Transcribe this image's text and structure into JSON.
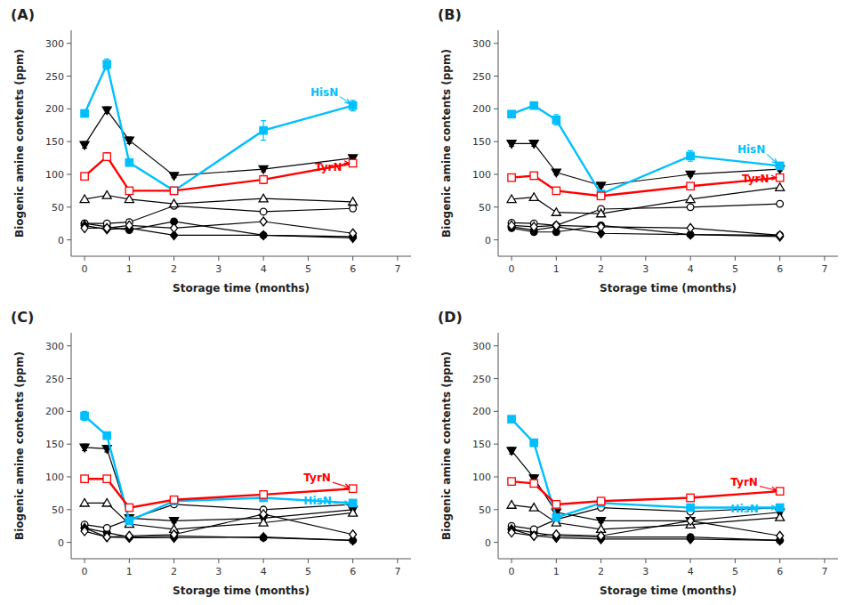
{
  "chart_data": [
    {
      "type": "line",
      "title": "(A)",
      "xlabel": "Storage time (months)",
      "ylabel": "Biogenic amine contents (ppm)",
      "x": [
        0,
        0.5,
        1,
        2,
        4,
        6
      ],
      "xlim": [
        -0.3,
        7.3
      ],
      "xticks": [
        0,
        1,
        2,
        3,
        4,
        5,
        6,
        7
      ],
      "ylim": [
        -25,
        320
      ],
      "yticks": [
        0,
        50,
        100,
        150,
        200,
        250,
        300
      ],
      "grid": false,
      "series": [
        {
          "color": "black",
          "marker": "circle",
          "values": [
            25,
            20,
            15,
            28,
            7,
            5
          ],
          "errors": [
            2,
            2,
            2,
            2,
            1,
            1
          ]
        },
        {
          "color": "black",
          "marker": "open-circle",
          "values": [
            25,
            25,
            27,
            52,
            43,
            48
          ]
        },
        {
          "color": "black",
          "marker": "triangle-down",
          "values": [
            145,
            198,
            152,
            98,
            108,
            125
          ],
          "errors": [
            5,
            5,
            5,
            3,
            4,
            4
          ]
        },
        {
          "color": "black",
          "marker": "open-triangle-up",
          "values": [
            62,
            68,
            62,
            55,
            63,
            58
          ]
        },
        {
          "color": "#00BFFF",
          "marker": "square",
          "values": [
            193,
            268,
            118,
            75,
            167,
            205
          ],
          "errors": [
            5,
            8,
            5,
            5,
            15,
            8
          ]
        },
        {
          "color": "red",
          "marker": "open-square",
          "values": [
            97,
            127,
            75,
            75,
            92,
            117
          ],
          "errors": [
            4,
            6,
            4,
            4,
            6,
            5
          ]
        },
        {
          "color": "black",
          "marker": "diamond",
          "values": [
            22,
            16,
            18,
            7,
            7,
            3
          ]
        },
        {
          "color": "black",
          "marker": "open-diamond",
          "values": [
            18,
            18,
            22,
            18,
            28,
            10
          ]
        }
      ],
      "annotations": [
        {
          "text": "HisN",
          "x": 6,
          "y": 205,
          "text_x": 5.05,
          "text_y": 220,
          "color": "#00BFFF"
        },
        {
          "text": "TyrN",
          "x": 6,
          "y": 117,
          "text_x": 5.15,
          "text_y": 105,
          "color": "red"
        }
      ]
    },
    {
      "type": "line",
      "title": "(B)",
      "xlabel": "Storage time (months)",
      "ylabel": "Biogenic amine contents (ppm)",
      "x": [
        0,
        0.5,
        1,
        2,
        4,
        6
      ],
      "xlim": [
        -0.3,
        7.3
      ],
      "xticks": [
        0,
        1,
        2,
        3,
        4,
        5,
        6,
        7
      ],
      "ylim": [
        -25,
        320
      ],
      "yticks": [
        0,
        50,
        100,
        150,
        200,
        250,
        300
      ],
      "grid": false,
      "series": [
        {
          "color": "black",
          "marker": "circle",
          "values": [
            18,
            12,
            12,
            22,
            8,
            7
          ],
          "errors": [
            2,
            1,
            1,
            2,
            1,
            1
          ]
        },
        {
          "color": "black",
          "marker": "open-circle",
          "values": [
            26,
            25,
            22,
            47,
            50,
            55
          ]
        },
        {
          "color": "black",
          "marker": "triangle-down",
          "values": [
            147,
            147,
            103,
            83,
            100,
            108
          ],
          "errors": [
            4,
            4,
            4,
            3,
            3,
            3
          ]
        },
        {
          "color": "black",
          "marker": "open-triangle-up",
          "values": [
            62,
            65,
            42,
            40,
            62,
            80
          ]
        },
        {
          "color": "#00BFFF",
          "marker": "square",
          "values": [
            192,
            205,
            183,
            70,
            128,
            113
          ],
          "errors": [
            5,
            5,
            8,
            5,
            8,
            5
          ]
        },
        {
          "color": "red",
          "marker": "open-square",
          "values": [
            95,
            98,
            75,
            67,
            82,
            95
          ],
          "errors": [
            4,
            4,
            5,
            4,
            4,
            4
          ]
        },
        {
          "color": "black",
          "marker": "diamond",
          "values": [
            20,
            15,
            20,
            10,
            8,
            5
          ]
        },
        {
          "color": "black",
          "marker": "open-diamond",
          "values": [
            22,
            20,
            22,
            20,
            18,
            7
          ]
        }
      ],
      "annotations": [
        {
          "text": "HisN",
          "x": 6,
          "y": 113,
          "text_x": 5.05,
          "text_y": 132,
          "color": "#00BFFF"
        },
        {
          "text": "TyrN",
          "x": 6,
          "y": 95,
          "text_x": 5.15,
          "text_y": 88,
          "color": "red"
        }
      ]
    },
    {
      "type": "line",
      "title": "(C)",
      "xlabel": "Storage time (months)",
      "ylabel": "Biogenic amine contents (ppm)",
      "x": [
        0,
        0.5,
        1,
        2,
        4,
        6
      ],
      "xlim": [
        -0.3,
        7.3
      ],
      "xticks": [
        0,
        1,
        2,
        3,
        4,
        5,
        6,
        7
      ],
      "ylim": [
        -25,
        320
      ],
      "yticks": [
        0,
        50,
        100,
        150,
        200,
        250,
        300
      ],
      "grid": false,
      "series": [
        {
          "color": "black",
          "marker": "circle",
          "values": [
            22,
            15,
            8,
            10,
            7,
            3
          ],
          "errors": [
            2,
            2,
            1,
            1,
            1,
            1
          ]
        },
        {
          "color": "black",
          "marker": "open-circle",
          "values": [
            27,
            22,
            35,
            58,
            50,
            58
          ]
        },
        {
          "color": "black",
          "marker": "triangle-down",
          "values": [
            145,
            143,
            37,
            33,
            37,
            50
          ],
          "errors": [
            5,
            5,
            3,
            3,
            3,
            3
          ]
        },
        {
          "color": "black",
          "marker": "open-triangle-up",
          "values": [
            60,
            60,
            28,
            20,
            30,
            45
          ]
        },
        {
          "color": "#00BFFF",
          "marker": "square",
          "values": [
            193,
            163,
            33,
            63,
            68,
            60
          ],
          "errors": [
            7,
            5,
            3,
            4,
            4,
            3
          ]
        },
        {
          "color": "red",
          "marker": "open-square",
          "values": [
            97,
            97,
            53,
            65,
            73,
            82
          ],
          "errors": [
            4,
            4,
            3,
            3,
            3,
            3
          ]
        },
        {
          "color": "black",
          "marker": "diamond",
          "values": [
            22,
            8,
            7,
            7,
            8,
            3
          ]
        },
        {
          "color": "black",
          "marker": "open-diamond",
          "values": [
            17,
            8,
            10,
            12,
            43,
            12
          ]
        }
      ],
      "annotations": [
        {
          "text": "TyrN",
          "x": 6,
          "y": 82,
          "text_x": 4.9,
          "text_y": 93,
          "color": "red"
        },
        {
          "text": "HisN",
          "x": 6,
          "y": 60,
          "text_x": 4.9,
          "text_y": 58,
          "color": "#00BFFF"
        }
      ]
    },
    {
      "type": "line",
      "title": "(D)",
      "xlabel": "Storage time (months)",
      "ylabel": "Biogenic amine contents (ppm)",
      "x": [
        0,
        0.5,
        1,
        2,
        4,
        6
      ],
      "xlim": [
        -0.3,
        7.3
      ],
      "xticks": [
        0,
        1,
        2,
        3,
        4,
        5,
        6,
        7
      ],
      "ylim": [
        -25,
        320
      ],
      "yticks": [
        0,
        50,
        100,
        150,
        200,
        250,
        300
      ],
      "grid": false,
      "series": [
        {
          "color": "black",
          "marker": "circle",
          "values": [
            20,
            15,
            10,
            8,
            8,
            3
          ],
          "errors": [
            2,
            1,
            1,
            1,
            1,
            1
          ]
        },
        {
          "color": "black",
          "marker": "open-circle",
          "values": [
            25,
            20,
            35,
            53,
            47,
            53
          ]
        },
        {
          "color": "black",
          "marker": "triangle-down",
          "values": [
            140,
            98,
            46,
            33,
            33,
            46
          ],
          "errors": [
            5,
            5,
            3,
            3,
            3,
            3
          ]
        },
        {
          "color": "black",
          "marker": "open-triangle-up",
          "values": [
            57,
            53,
            30,
            20,
            27,
            38
          ]
        },
        {
          "color": "#00BFFF",
          "marker": "square",
          "values": [
            188,
            152,
            38,
            60,
            53,
            53
          ],
          "errors": [
            5,
            5,
            3,
            3,
            3,
            3
          ]
        },
        {
          "color": "red",
          "marker": "open-square",
          "values": [
            93,
            90,
            58,
            63,
            68,
            78
          ],
          "errors": [
            3,
            3,
            3,
            3,
            3,
            3
          ]
        },
        {
          "color": "black",
          "marker": "diamond",
          "values": [
            20,
            10,
            7,
            5,
            5,
            3
          ]
        },
        {
          "color": "black",
          "marker": "open-diamond",
          "values": [
            15,
            10,
            12,
            10,
            33,
            10
          ]
        }
      ],
      "annotations": [
        {
          "text": "TyrN",
          "x": 6,
          "y": 78,
          "text_x": 4.9,
          "text_y": 87,
          "color": "red"
        },
        {
          "text": "HisN",
          "x": 6,
          "y": 53,
          "text_x": 4.9,
          "text_y": 46,
          "color": "#00BFFF"
        }
      ]
    }
  ]
}
